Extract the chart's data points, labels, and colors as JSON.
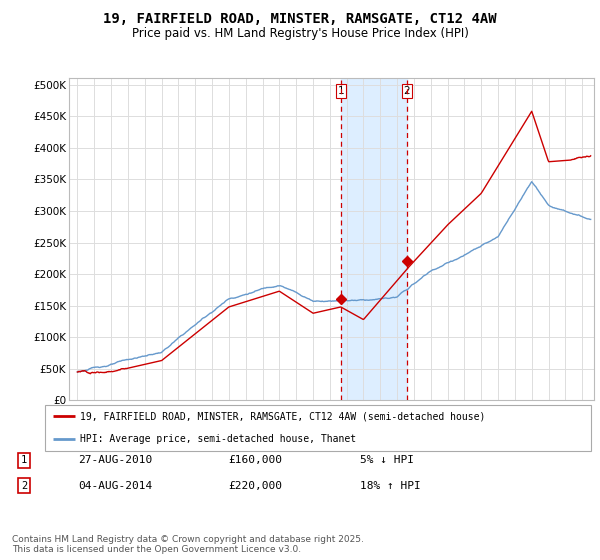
{
  "title": "19, FAIRFIELD ROAD, MINSTER, RAMSGATE, CT12 4AW",
  "subtitle": "Price paid vs. HM Land Registry's House Price Index (HPI)",
  "ylabel_ticks": [
    "£0",
    "£50K",
    "£100K",
    "£150K",
    "£200K",
    "£250K",
    "£300K",
    "£350K",
    "£400K",
    "£450K",
    "£500K"
  ],
  "ytick_values": [
    0,
    50000,
    100000,
    150000,
    200000,
    250000,
    300000,
    350000,
    400000,
    450000,
    500000
  ],
  "xlim": [
    1994.5,
    2025.7
  ],
  "ylim": [
    0,
    510000
  ],
  "sale1_x": 2010.65,
  "sale1_y": 160000,
  "sale2_x": 2014.58,
  "sale2_y": 220000,
  "vline1_x": 2010.65,
  "vline2_x": 2014.58,
  "shade_xmin": 2010.65,
  "shade_xmax": 2014.58,
  "legend_line1": "19, FAIRFIELD ROAD, MINSTER, RAMSGATE, CT12 4AW (semi-detached house)",
  "legend_line2": "HPI: Average price, semi-detached house, Thanet",
  "annotation1_label": "1",
  "annotation1_date": "27-AUG-2010",
  "annotation1_price": "£160,000",
  "annotation1_hpi": "5% ↓ HPI",
  "annotation2_label": "2",
  "annotation2_date": "04-AUG-2014",
  "annotation2_price": "£220,000",
  "annotation2_hpi": "18% ↑ HPI",
  "footer": "Contains HM Land Registry data © Crown copyright and database right 2025.\nThis data is licensed under the Open Government Licence v3.0.",
  "line_color_red": "#cc0000",
  "line_color_blue": "#6699cc",
  "shade_color": "#ddeeff",
  "vline_color": "#cc0000",
  "background_color": "#ffffff",
  "grid_color": "#dddddd",
  "title_fontsize": 10,
  "subtitle_fontsize": 8.5,
  "tick_fontsize": 7.5,
  "footer_fontsize": 6.5
}
